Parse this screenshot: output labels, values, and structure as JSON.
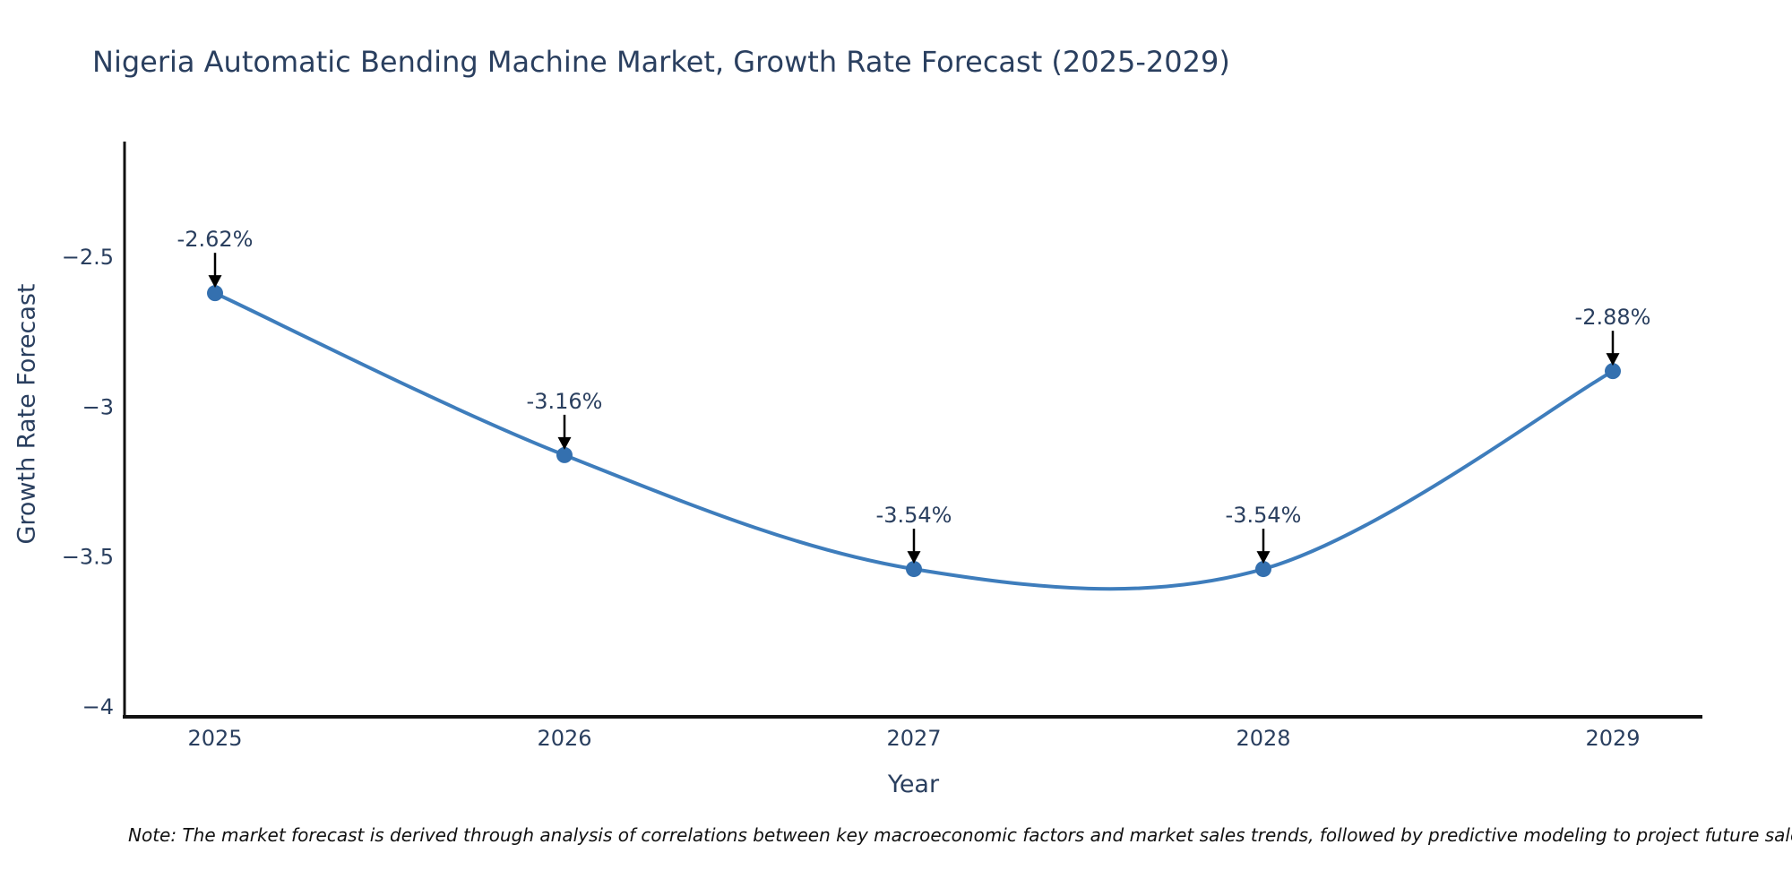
{
  "chart_data": {
    "type": "line",
    "title": "Nigeria Automatic Bending Machine Market, Growth Rate Forecast (2025-2029)",
    "x": [
      2025,
      2026,
      2027,
      2028,
      2029
    ],
    "categories": [
      "2025",
      "2026",
      "2027",
      "2028",
      "2029"
    ],
    "values": [
      -2.62,
      -3.16,
      -3.54,
      -3.54,
      -2.88
    ],
    "point_labels": [
      "-2.62%",
      "-3.16%",
      "-3.54%",
      "-3.54%",
      "-2.88%"
    ],
    "xlabel": "Year",
    "ylabel": "Growth Rate Forecast",
    "yticks": [
      -2.5,
      -3,
      -3.5,
      -4
    ],
    "ytick_labels": [
      "−2.5",
      "−3",
      "−3.5",
      "−4"
    ],
    "ylim": [
      -4.03,
      -2.12
    ],
    "line_shape": "spline",
    "grid": false,
    "legend": false,
    "marker_style": "circle",
    "annotation_arrows": true
  },
  "footnote": {
    "text": "Note: The market forecast is derived through analysis of correlations between key macroeconomic factors and market sales trends, followed by predictive modeling to project future sales trends."
  },
  "colors": {
    "title_text": "#2a3f5f",
    "tick_text": "#2a3f5f",
    "note_text": "#111111",
    "line": "#3e7dbc",
    "marker": "#3470af",
    "arrow": "#000000",
    "axis": "#111111",
    "background": "#ffffff"
  }
}
